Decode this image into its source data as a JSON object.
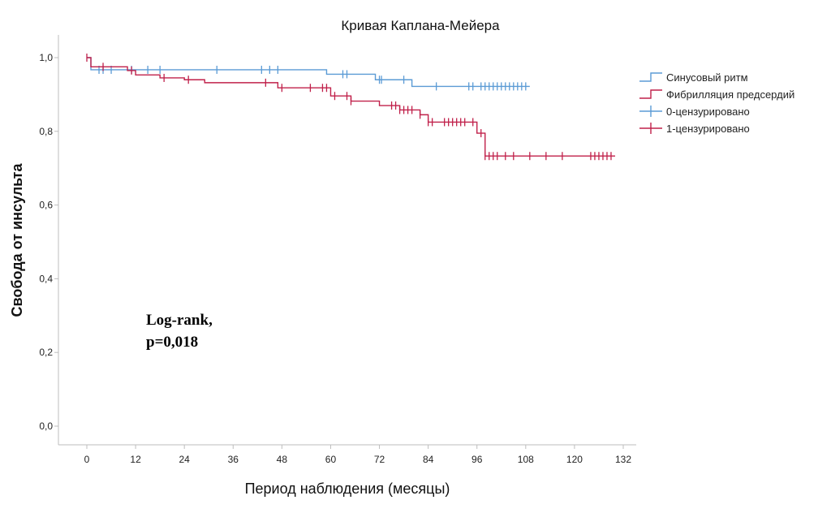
{
  "chart_data": {
    "type": "line",
    "subtype": "kaplan-meier-step",
    "title": "Кривая Каплана-Мейера",
    "xlabel": "Период наблюдения (месяцы)",
    "ylabel": "Свобода  от инсульта",
    "xlim": [
      -7,
      135
    ],
    "ylim": [
      -0.05,
      1.06
    ],
    "xticks": [
      0,
      12,
      24,
      36,
      48,
      60,
      72,
      84,
      96,
      108,
      120,
      132
    ],
    "xtick_labels": [
      "0",
      "12",
      "24",
      "36",
      "48",
      "60",
      "72",
      "84",
      "96",
      "108",
      "120",
      "132"
    ],
    "yticks": [
      0.0,
      0.2,
      0.4,
      0.6,
      0.8,
      1.0
    ],
    "ytick_labels": [
      "0,0",
      "0,2",
      "0,4",
      "0,6",
      "0,8",
      "1,0"
    ],
    "grid": false,
    "legend_position": "right",
    "legend": [
      {
        "label": "Синусовый ритм",
        "kind": "step",
        "color": "#5b9bd5"
      },
      {
        "label": "Фибрилляция предсердий",
        "kind": "step",
        "color": "#c0204a"
      },
      {
        "label": "0-цензурировано",
        "kind": "censor",
        "color": "#5b9bd5"
      },
      {
        "label": "1-цензурировано",
        "kind": "censor",
        "color": "#c0204a"
      }
    ],
    "annotation": {
      "line1": "Log-rank,",
      "line2": "p=0,018"
    },
    "series": [
      {
        "name": "Синусовый ритм",
        "color": "#5b9bd5",
        "steps": [
          [
            0,
            1.0
          ],
          [
            1,
            0.967
          ],
          [
            59,
            0.955
          ],
          [
            71,
            0.94
          ],
          [
            80,
            0.922
          ],
          [
            109,
            0.922
          ]
        ],
        "censored": [
          3,
          4,
          6,
          11,
          15,
          18,
          32,
          43,
          45,
          47,
          63,
          64,
          72,
          72.5,
          78,
          86,
          94,
          95,
          97,
          98,
          99,
          100,
          101,
          102,
          103,
          104,
          105,
          106,
          107,
          108
        ]
      },
      {
        "name": "Фибрилляция предсердий",
        "color": "#c0204a",
        "steps": [
          [
            0,
            1.0
          ],
          [
            1,
            0.975
          ],
          [
            10,
            0.965
          ],
          [
            12,
            0.953
          ],
          [
            18,
            0.945
          ],
          [
            24,
            0.94
          ],
          [
            29,
            0.932
          ],
          [
            47,
            0.918
          ],
          [
            60,
            0.896
          ],
          [
            65,
            0.882
          ],
          [
            72,
            0.87
          ],
          [
            77,
            0.858
          ],
          [
            82,
            0.845
          ],
          [
            84,
            0.825
          ],
          [
            96,
            0.795
          ],
          [
            98,
            0.733
          ],
          [
            130,
            0.733
          ]
        ],
        "censored": [
          0,
          4,
          11,
          19,
          25,
          44,
          48,
          55,
          58,
          59,
          61,
          64,
          65,
          75,
          76,
          77,
          78,
          79,
          80,
          82,
          84,
          85,
          88,
          89,
          90,
          91,
          92,
          93,
          95,
          97,
          98,
          99,
          100,
          101,
          103,
          105,
          109,
          113,
          117,
          124,
          125,
          126,
          127,
          128,
          129
        ]
      }
    ]
  }
}
